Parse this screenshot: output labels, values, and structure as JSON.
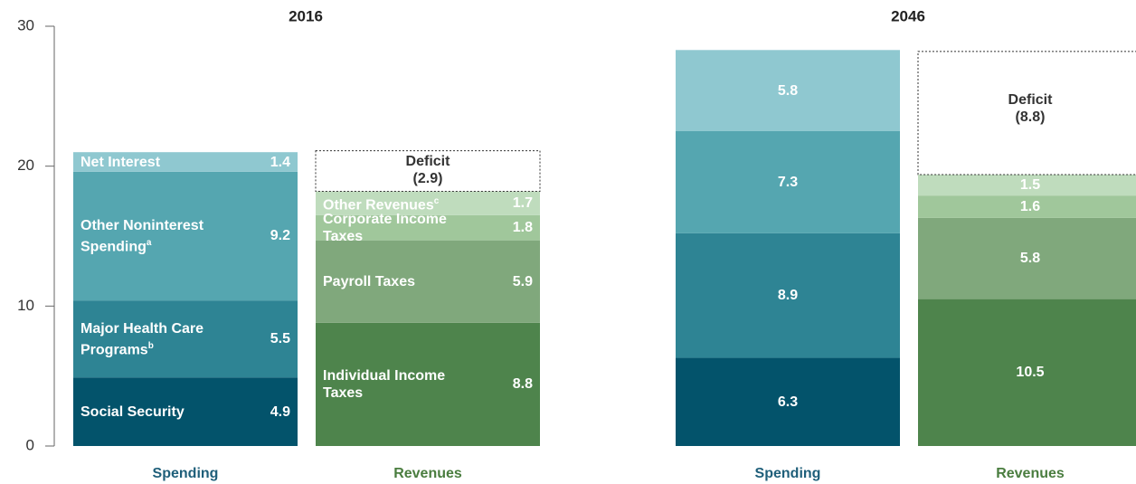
{
  "chart_data": [
    {
      "type": "bar",
      "stacked": true,
      "title": "2016",
      "categories": [
        "Spending",
        "Revenues"
      ],
      "category_colors": [
        "#1f5f7a",
        "#4a7d3f"
      ],
      "ylim": [
        0,
        30
      ],
      "yticks": [
        0,
        10,
        20,
        30
      ],
      "series": [
        {
          "name": "Social Security",
          "color": "#03536b",
          "values": [
            4.9,
            null
          ]
        },
        {
          "name": "Major Health Care Programs",
          "note": "b",
          "color": "#2e8494",
          "values": [
            5.5,
            null
          ]
        },
        {
          "name": "Other Noninterest Spending",
          "note": "a",
          "color": "#55a6b0",
          "values": [
            9.2,
            null
          ]
        },
        {
          "name": "Net Interest",
          "color": "#8fc8d0",
          "values": [
            1.4,
            null
          ]
        },
        {
          "name": "Individual Income Taxes",
          "color": "#4e844c",
          "values": [
            null,
            8.8
          ]
        },
        {
          "name": "Payroll Taxes",
          "color": "#80a87c",
          "values": [
            null,
            5.9
          ]
        },
        {
          "name": "Corporate Income Taxes",
          "color": "#a0c79b",
          "values": [
            null,
            1.8
          ]
        },
        {
          "name": "Other Revenues",
          "note": "c",
          "color": "#bfdcbd",
          "values": [
            null,
            1.7
          ]
        },
        {
          "name": "Deficit",
          "color": "#ffffff",
          "style": "dashed",
          "values": [
            null,
            2.9
          ],
          "value_labels": [
            null,
            "(2.9)"
          ]
        }
      ]
    },
    {
      "type": "bar",
      "stacked": true,
      "title": "2046",
      "categories": [
        "Spending",
        "Revenues"
      ],
      "category_colors": [
        "#1f5f7a",
        "#4a7d3f"
      ],
      "ylim": [
        0,
        30
      ],
      "series": [
        {
          "color": "#03536b",
          "values": [
            6.3,
            null
          ]
        },
        {
          "color": "#2e8494",
          "values": [
            8.9,
            null
          ]
        },
        {
          "color": "#55a6b0",
          "values": [
            7.3,
            null
          ]
        },
        {
          "color": "#8fc8d0",
          "values": [
            5.8,
            null
          ]
        },
        {
          "color": "#4e844c",
          "values": [
            null,
            10.5
          ]
        },
        {
          "color": "#80a87c",
          "values": [
            null,
            5.8
          ]
        },
        {
          "color": "#a0c79b",
          "values": [
            null,
            1.6
          ]
        },
        {
          "color": "#bfdcbd",
          "values": [
            null,
            1.5
          ]
        },
        {
          "name": "Deficit",
          "color": "#ffffff",
          "style": "dashed",
          "values": [
            null,
            8.8
          ],
          "value_labels": [
            null,
            "(8.8)"
          ]
        }
      ]
    }
  ]
}
